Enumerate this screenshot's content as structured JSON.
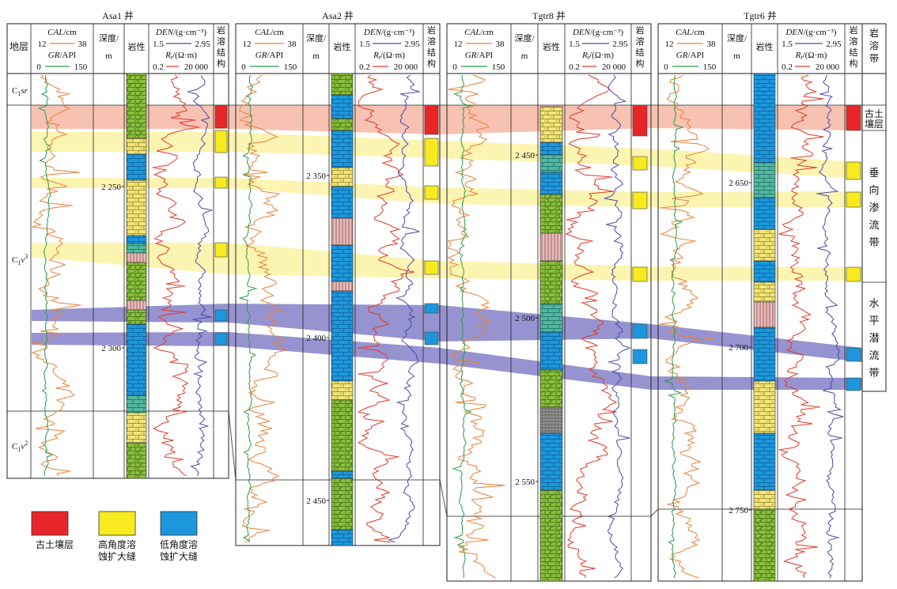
{
  "chart_data": {
    "type": "line",
    "title": "",
    "header_labels": {
      "formation": "地层",
      "depth": [
        "深度/",
        "m"
      ],
      "lithology": "岩性",
      "karst_structure": [
        "岩",
        "溶",
        "结",
        "构"
      ],
      "karst_zone": [
        "岩",
        "溶",
        "带"
      ]
    },
    "curve_headers": {
      "cal": {
        "name": "CAL",
        "unit": "/cm",
        "min": "12",
        "max": "38",
        "color": "#e9823a"
      },
      "gr": {
        "name": "GR",
        "unit": "/API",
        "min": "0",
        "max": "150",
        "color": "#2a9a4a"
      },
      "den": {
        "name": "DEN",
        "unit": "/(g·cm⁻³)",
        "min": "1.5",
        "max": "2.95",
        "color": "#4a4aa8"
      },
      "rt": {
        "name": "R",
        "sub": "t",
        "unit": "/(Ω·m)",
        "min": "0.2",
        "max": "20 000",
        "color": "#e03a2a"
      }
    },
    "wells": [
      {
        "name": "Asa1 井",
        "depth_ticks": [
          {
            "label": "2 250",
            "y": 2250
          },
          {
            "label": "2 300",
            "y": 2300
          }
        ],
        "formations": [
          {
            "label": "C",
            "sub": "1",
            "sup": "sr",
            "italic_part": "sr"
          },
          {
            "label": "C",
            "sub": "1",
            "sup": "v",
            "exp": "3"
          },
          {
            "label": "C",
            "sub": "1",
            "sup": "v",
            "exp": "2"
          }
        ],
        "has_formation_column": true
      },
      {
        "name": "Asa2 井",
        "depth_ticks": [
          {
            "label": "2 350",
            "y": 2350
          },
          {
            "label": "2 400",
            "y": 2400
          },
          {
            "label": "2 450",
            "y": 2450
          }
        ]
      },
      {
        "name": "Tgtr8 井",
        "depth_ticks": [
          {
            "label": "2 450",
            "y": 2450
          },
          {
            "label": "2 500",
            "y": 2500
          },
          {
            "label": "2 550",
            "y": 2550
          }
        ]
      },
      {
        "name": "Tgtr6 井",
        "depth_ticks": [
          {
            "label": "2 650",
            "y": 2650
          },
          {
            "label": "2 700",
            "y": 2700
          },
          {
            "label": "2 750",
            "y": 2750
          }
        ]
      }
    ],
    "karst_zones": [
      {
        "label": [
          "古土",
          "壤层"
        ]
      },
      {
        "label": [
          "垂",
          "向",
          "渗",
          "流",
          "带"
        ]
      },
      {
        "label": [
          "水",
          "平",
          "潜",
          "流",
          "带"
        ]
      }
    ],
    "legend": [
      {
        "label": "古土壤层",
        "color": "#e8262a"
      },
      {
        "label": [
          "高角度溶",
          "蚀扩大缝"
        ],
        "color": "#f7ea1e"
      },
      {
        "label": [
          "低角度溶",
          "蚀扩大缝"
        ],
        "color": "#1c97dd"
      }
    ],
    "colors": {
      "paleosol_band": "#f6b7a5",
      "high_angle_band": "#fbf19e",
      "low_angle_band": "#8480c8",
      "limestone": "#1c97dd",
      "dolomite": "#8cbf3c",
      "dolomitic_lime": "#f3e77a",
      "mudstone": "#d6a8a8",
      "shale": "#8a8a8a"
    }
  }
}
